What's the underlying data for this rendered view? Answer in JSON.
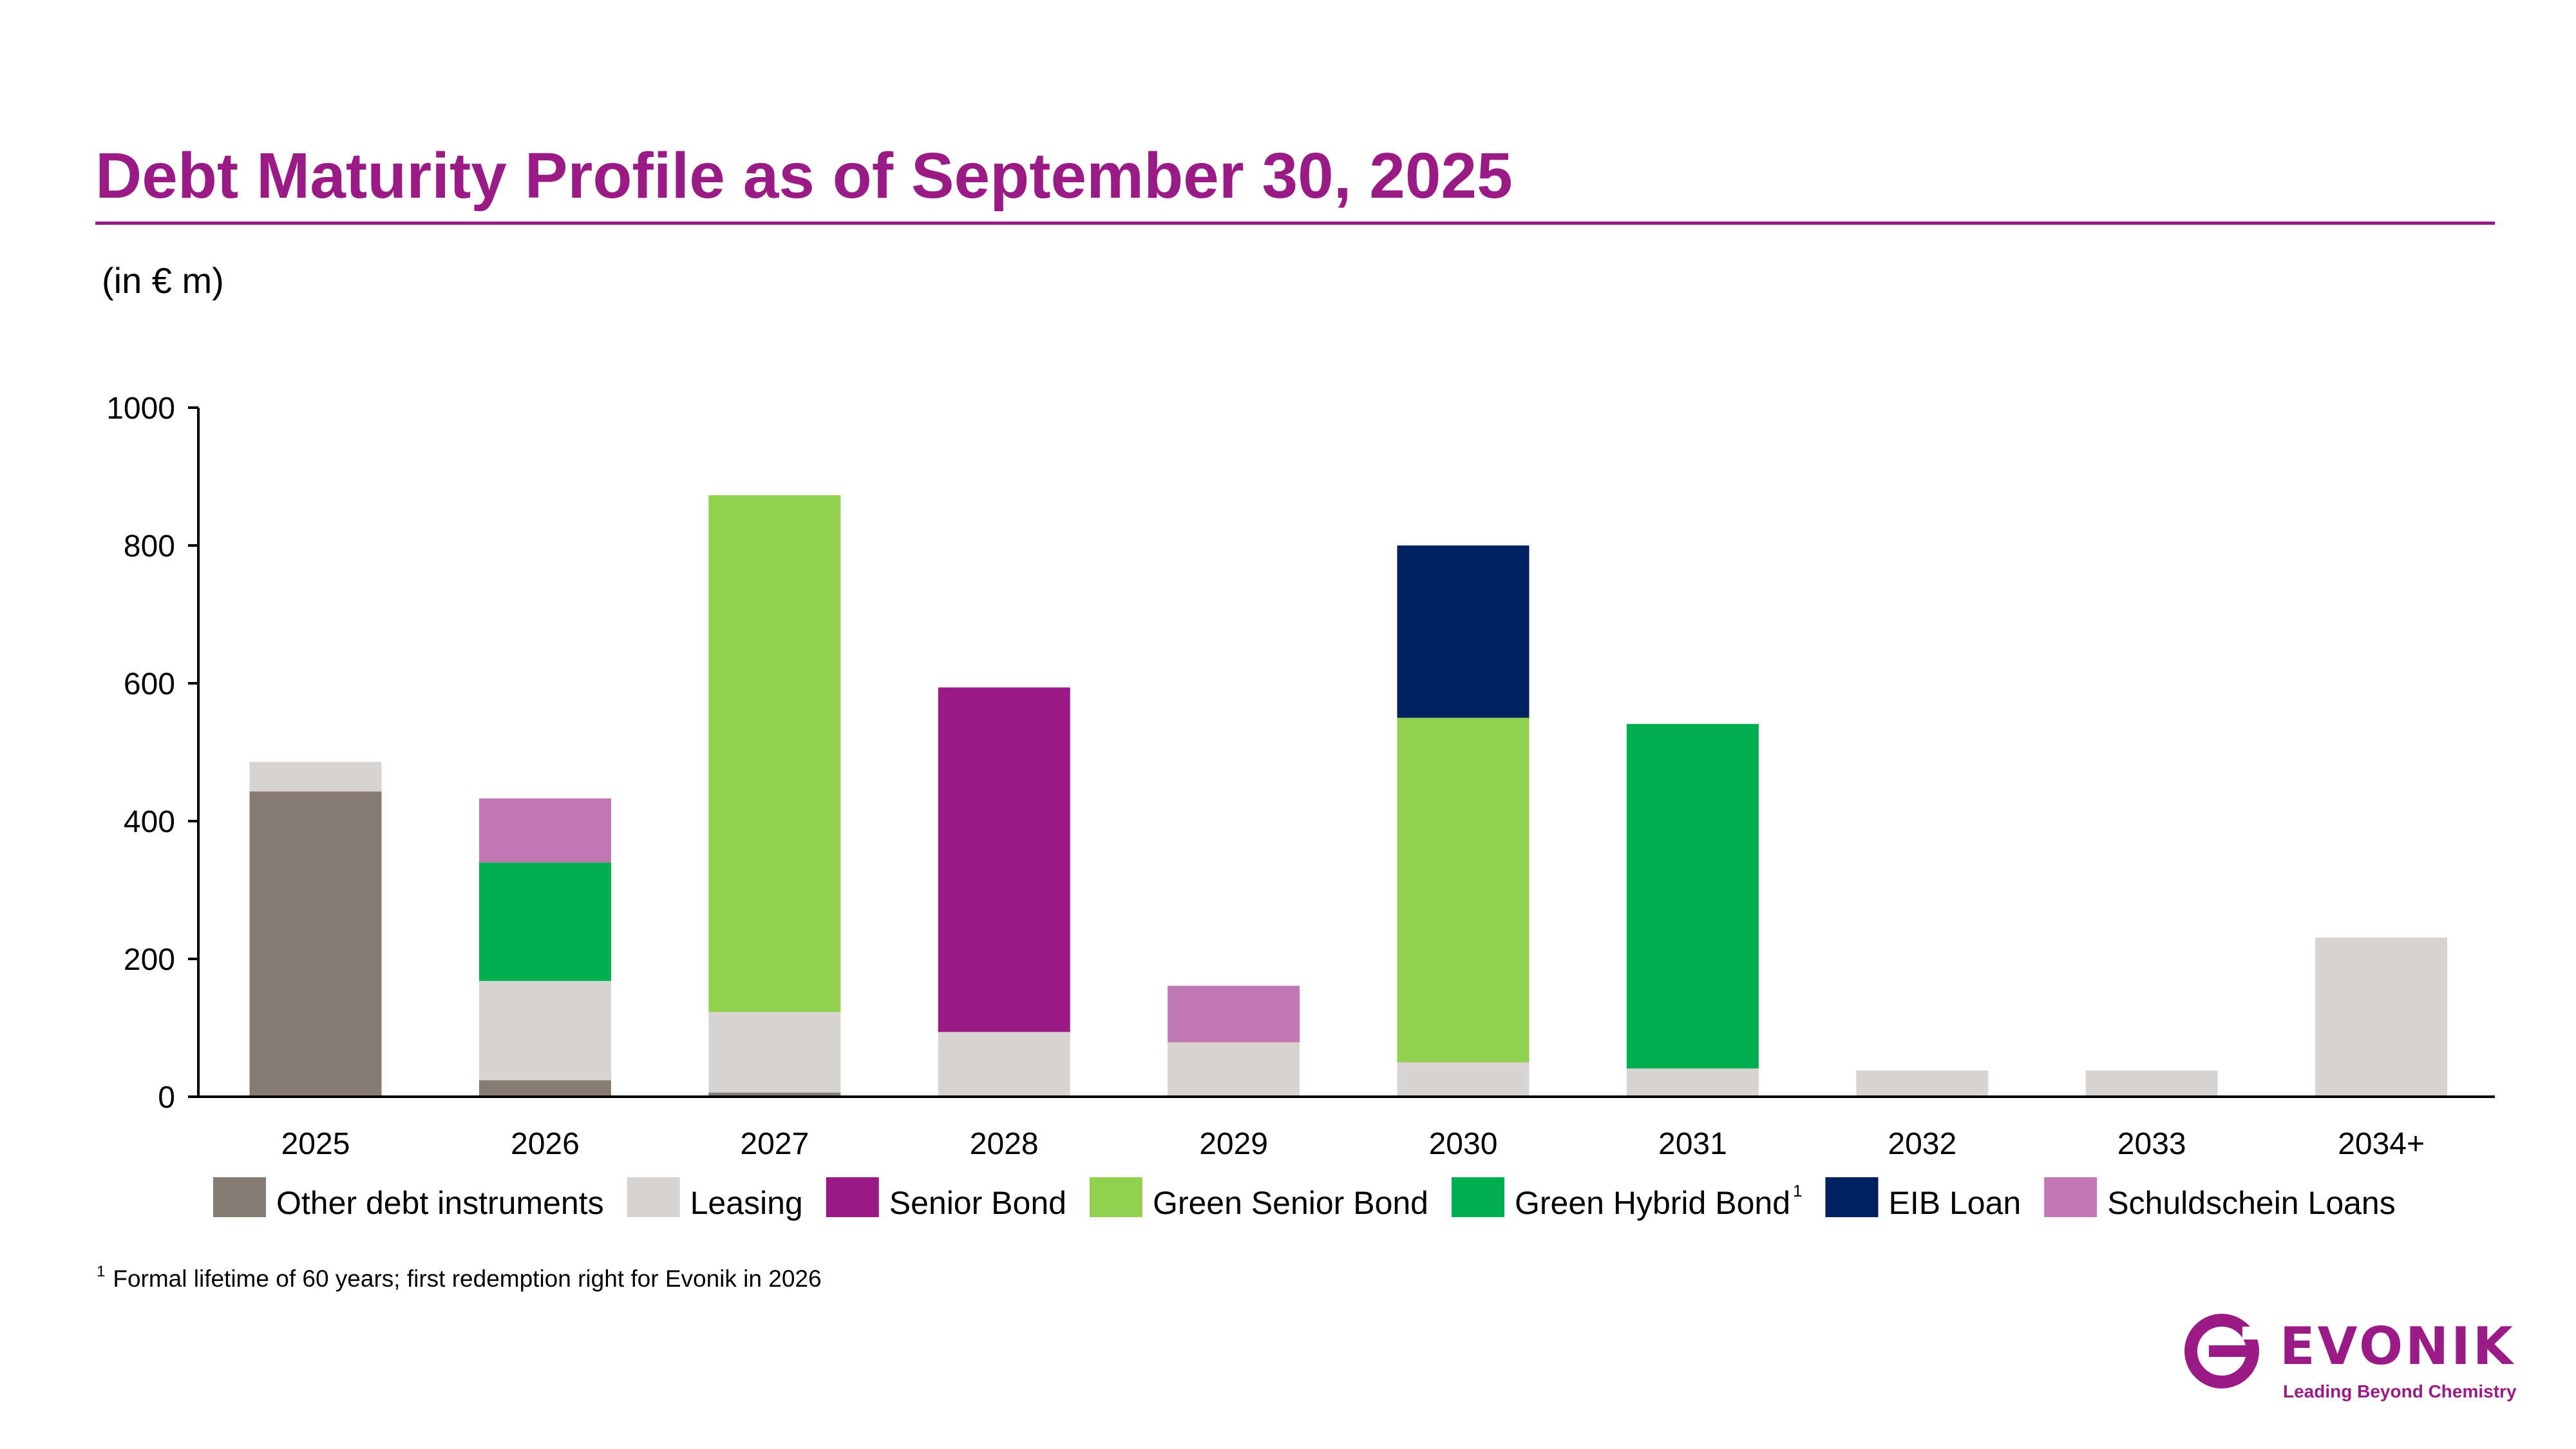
{
  "title": "Debt Maturity Profile as of September 30, 2025",
  "unit_label": "(in € m)",
  "footnote": {
    "marker": "1",
    "text": "Formal lifetime of 60 years; first redemption right for Evonik in 2026"
  },
  "logo": {
    "name": "EVONIK",
    "tagline": "Leading Beyond Chemistry",
    "color": "#9B1B86",
    "icon": "evonik-e-logo-icon"
  },
  "chart_data": {
    "type": "bar",
    "stacked": true,
    "title": "",
    "xlabel": "",
    "ylabel": "",
    "ylim": [
      0,
      1000
    ],
    "yticks": [
      "0",
      "200",
      "400",
      "600",
      "800",
      "1000"
    ],
    "grid": false,
    "legend": "bottom",
    "categories": [
      "2025",
      "2026",
      "2027",
      "2028",
      "2029",
      "2030",
      "2031",
      "2032",
      "2033",
      "2034+"
    ],
    "series": [
      {
        "name": "Other debt instruments",
        "color": "#857C75",
        "values": [
          443,
          24,
          6,
          0,
          0,
          0,
          0,
          0,
          0,
          0
        ]
      },
      {
        "name": "Leasing",
        "color": "#D7D4D1",
        "values": [
          43,
          144,
          117,
          94,
          79,
          50,
          41,
          38,
          38,
          231
        ]
      },
      {
        "name": "Senior Bond",
        "color": "#9B1B86",
        "values": [
          0,
          0,
          0,
          500,
          0,
          0,
          0,
          0,
          0,
          0
        ]
      },
      {
        "name": "Green Senior Bond",
        "color": "#92D050",
        "values": [
          0,
          0,
          750,
          0,
          0,
          500,
          0,
          0,
          0,
          0
        ]
      },
      {
        "name": "Green Hybrid Bond",
        "color": "#00AF50",
        "values": [
          0,
          172,
          0,
          0,
          0,
          0,
          500,
          0,
          0,
          0
        ]
      },
      {
        "name": "EIB Loan",
        "color": "#00205F",
        "values": [
          0,
          0,
          0,
          0,
          0,
          250,
          0,
          0,
          0,
          0
        ]
      },
      {
        "name": "Schuldschein Loans",
        "color": "#C179B6",
        "values": [
          0,
          93,
          0,
          0,
          82,
          0,
          0,
          0,
          0,
          0
        ]
      }
    ],
    "legend_footnote_marker": "1"
  },
  "colors": {
    "accent": "#9B1B86",
    "axis": "#000000"
  }
}
